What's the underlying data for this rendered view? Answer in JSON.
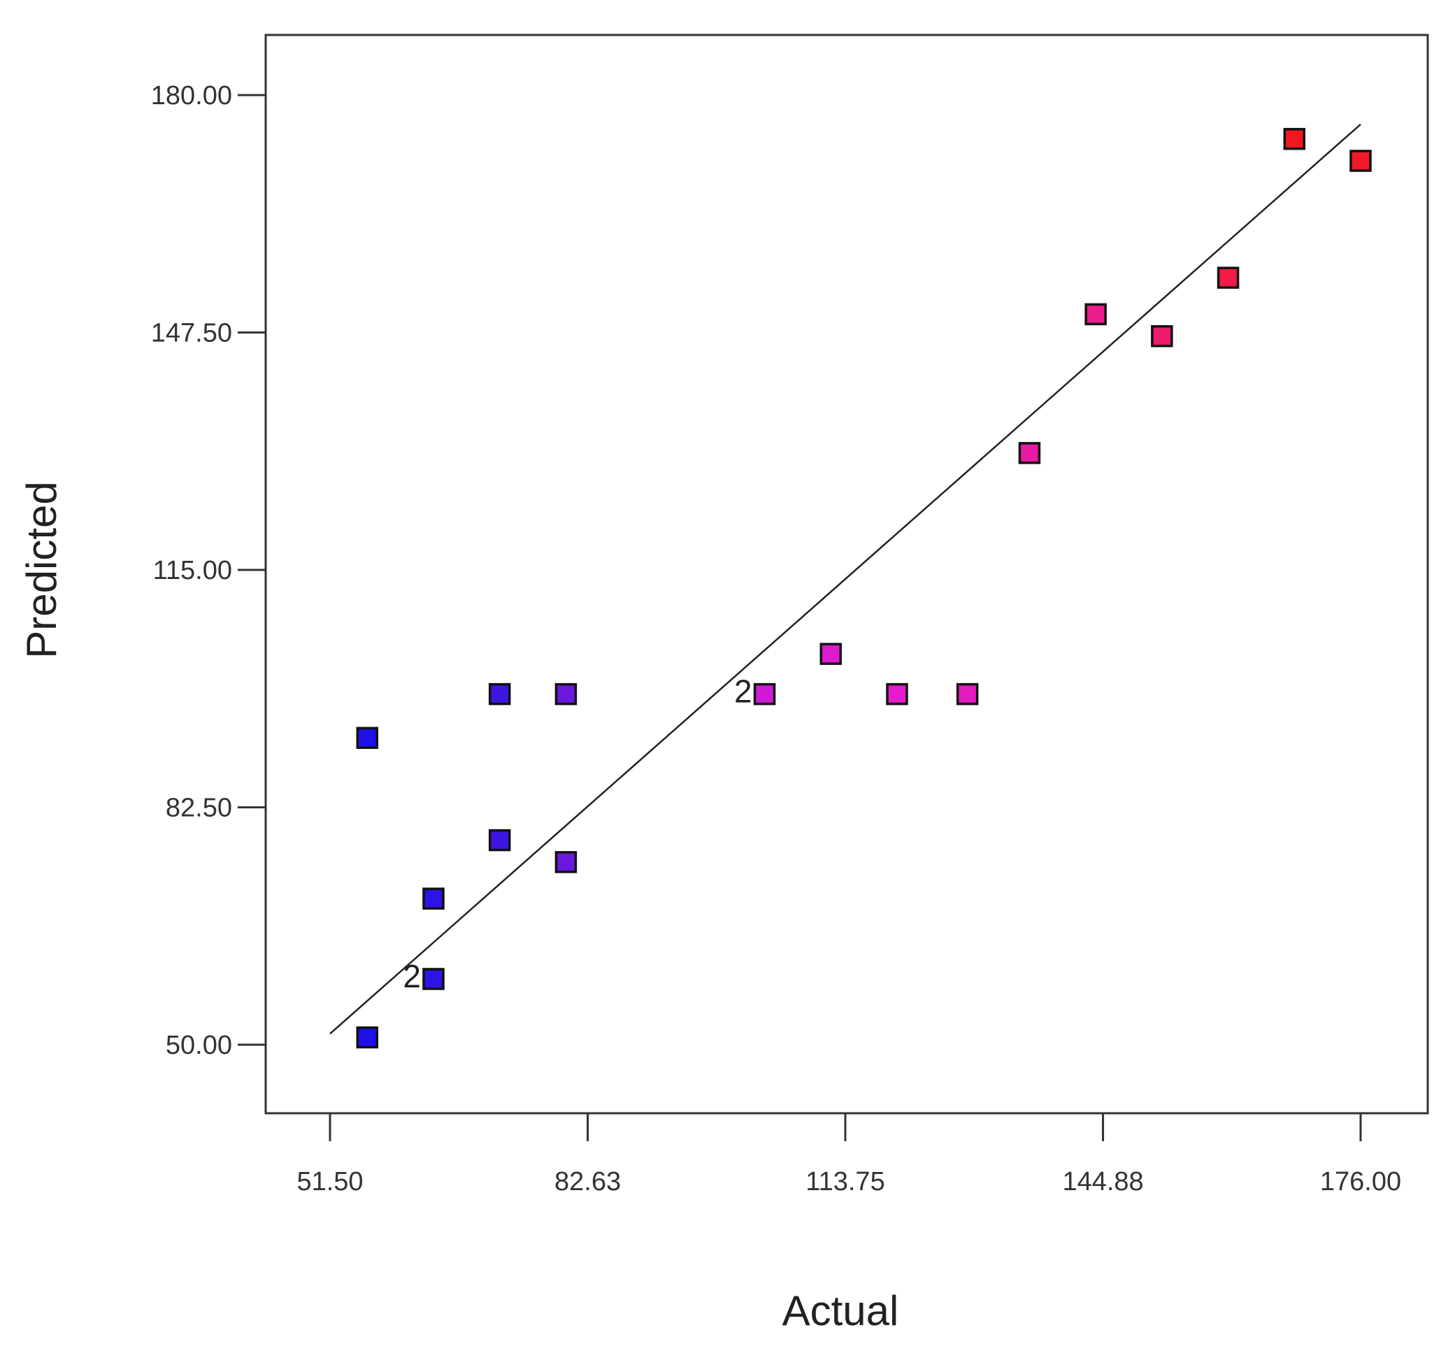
{
  "chart_data": {
    "type": "scatter",
    "xlabel": "Actual",
    "ylabel": "Predicted",
    "xlim": [
      51.5,
      176.0
    ],
    "ylim": [
      50.0,
      180.0
    ],
    "x_ticks": [
      "51.50",
      "82.63",
      "113.75",
      "144.88",
      "176.00"
    ],
    "x_tick_values": [
      51.5,
      82.63,
      113.75,
      144.88,
      176.0
    ],
    "y_ticks": [
      "50.00",
      "82.50",
      "115.00",
      "147.50",
      "180.00"
    ],
    "y_tick_values": [
      50.0,
      82.5,
      115.0,
      147.5,
      180.0
    ],
    "grid": false,
    "legend": "none",
    "fit_line": {
      "x": [
        51.5,
        176.0
      ],
      "y": [
        51.5,
        176.0
      ]
    },
    "points": [
      {
        "x": 56,
        "y": 51,
        "color": "#1f10e8"
      },
      {
        "x": 64,
        "y": 59,
        "color": "#2d14e4",
        "count": "2"
      },
      {
        "x": 64,
        "y": 70,
        "color": "#2d14e4"
      },
      {
        "x": 72,
        "y": 78,
        "color": "#3e16e0"
      },
      {
        "x": 72,
        "y": 98,
        "color": "#3e16e0"
      },
      {
        "x": 56,
        "y": 92,
        "color": "#1f10e8"
      },
      {
        "x": 80,
        "y": 75,
        "color": "#6a18dc"
      },
      {
        "x": 80,
        "y": 98,
        "color": "#6a18dc"
      },
      {
        "x": 104,
        "y": 98,
        "color": "#d11ad8",
        "count": "2"
      },
      {
        "x": 112,
        "y": 103.5,
        "color": "#dc1ccf"
      },
      {
        "x": 120,
        "y": 98,
        "color": "#e41ccb"
      },
      {
        "x": 128.5,
        "y": 98,
        "color": "#e41cc0"
      },
      {
        "x": 136,
        "y": 131,
        "color": "#e61aa3"
      },
      {
        "x": 144,
        "y": 150,
        "color": "#ec1c8e"
      },
      {
        "x": 152,
        "y": 147,
        "color": "#ee1a6e"
      },
      {
        "x": 160,
        "y": 155,
        "color": "#f11c48"
      },
      {
        "x": 168,
        "y": 174,
        "color": "#f2161e"
      },
      {
        "x": 176,
        "y": 171,
        "color": "#f21a2a"
      }
    ]
  }
}
